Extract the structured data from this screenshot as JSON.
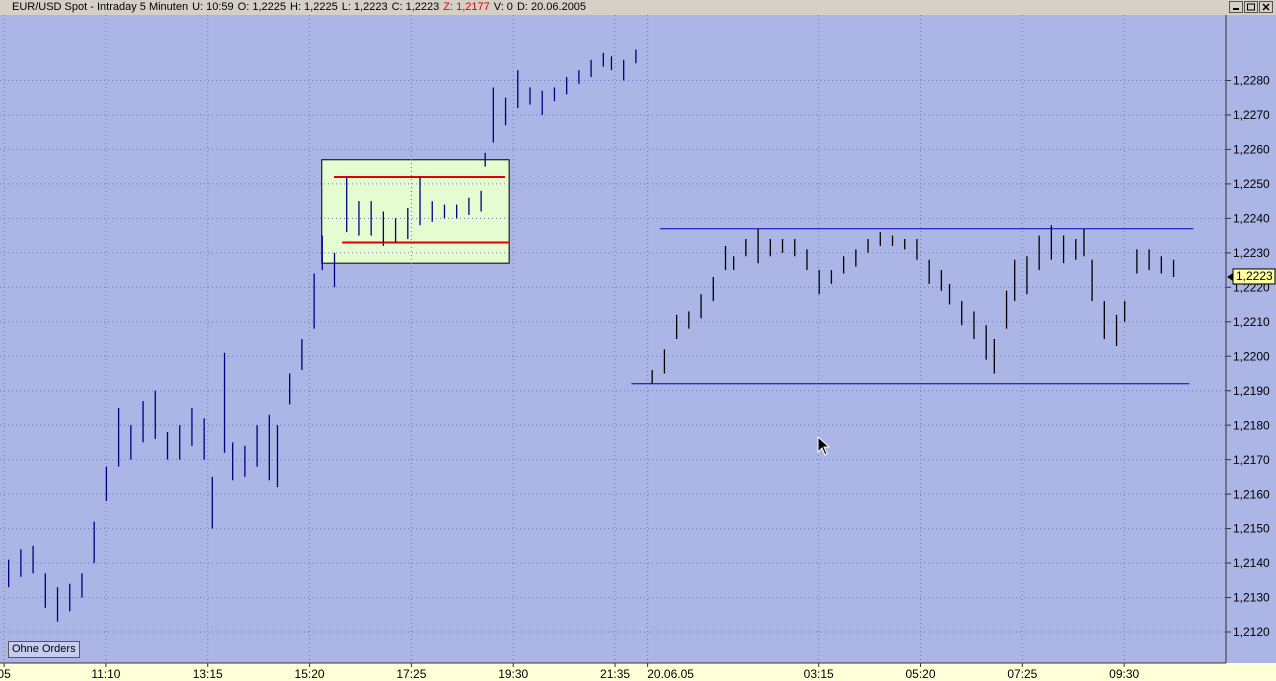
{
  "header": {
    "items": [
      "EUR/USD Spot - Intraday 5 Minuten",
      "U: 10:59",
      "O: 1,2225",
      "H: 1,2225",
      "L: 1,2223",
      "C: 1,2223",
      "Z: 1,2177",
      "V: 0",
      "D: 20.06.2005"
    ]
  },
  "button": "Ohne Orders",
  "chart_data": {
    "type": "ohlc",
    "grid": true,
    "xlim": [
      0,
      301
    ],
    "ylim": [
      1.2111,
      1.2299
    ],
    "xticks": [
      {
        "value": 1,
        "label": "05"
      },
      {
        "value": 26,
        "label": "11:10"
      },
      {
        "value": 51,
        "label": "13:15"
      },
      {
        "value": 76,
        "label": "15:20"
      },
      {
        "value": 101,
        "label": "17:25"
      },
      {
        "value": 126,
        "label": "19:30"
      },
      {
        "value": 151,
        "label": "21:35"
      },
      {
        "value": 159,
        "label": "20.06.05"
      },
      {
        "value": 201,
        "label": "03:15"
      },
      {
        "value": 226,
        "label": "05:20"
      },
      {
        "value": 251,
        "label": "07:25"
      },
      {
        "value": 276,
        "label": "09:30"
      }
    ],
    "yticks": [
      {
        "value": 1.228,
        "label": "1,2280"
      },
      {
        "value": 1.227,
        "label": "1,2270"
      },
      {
        "value": 1.226,
        "label": "1,2260"
      },
      {
        "value": 1.225,
        "label": "1,2250"
      },
      {
        "value": 1.224,
        "label": "1,2240"
      },
      {
        "value": 1.223,
        "label": "1,2230"
      },
      {
        "value": 1.222,
        "label": "1,2220"
      },
      {
        "value": 1.221,
        "label": "1,2210"
      },
      {
        "value": 1.22,
        "label": "1,2200"
      },
      {
        "value": 1.219,
        "label": "1,2190"
      },
      {
        "value": 1.218,
        "label": "1,2180"
      },
      {
        "value": 1.217,
        "label": "1,2170"
      },
      {
        "value": 1.216,
        "label": "1,2160"
      },
      {
        "value": 1.215,
        "label": "1,2150"
      },
      {
        "value": 1.214,
        "label": "1,2140"
      },
      {
        "value": 1.213,
        "label": "1,2130"
      },
      {
        "value": 1.212,
        "label": "1,2120"
      }
    ],
    "box": {
      "x": [
        79,
        125
      ],
      "y": [
        1.2257,
        1.2227
      ],
      "color": "#e4fcd0"
    },
    "hlines": [
      {
        "value": 1.2237,
        "x": [
          162,
          293
        ],
        "color": "#0000c0"
      },
      {
        "value": 1.2192,
        "x": [
          155,
          292
        ],
        "color": "#0000c0"
      },
      {
        "value": 1.2252,
        "x": [
          82,
          124
        ],
        "color": "#e00000"
      },
      {
        "value": 1.2233,
        "x": [
          84,
          125
        ],
        "color": "#e00000"
      }
    ],
    "series": [
      {
        "color": "#000080",
        "x": [
          2,
          5,
          8,
          11,
          14,
          17,
          20,
          23,
          26,
          29,
          32,
          35,
          38,
          41,
          44,
          47,
          50,
          52,
          55,
          57,
          60,
          63,
          66,
          68,
          71,
          74,
          77,
          79,
          82,
          85,
          88,
          91,
          94,
          97,
          100,
          103,
          106,
          109,
          112,
          115,
          118,
          119,
          121,
          124,
          127,
          130,
          133,
          136,
          139,
          142,
          145,
          148,
          150,
          153,
          156
        ],
        "high": [
          1.2141,
          1.2144,
          1.2145,
          1.2137,
          1.2133,
          1.2134,
          1.2137,
          1.2152,
          1.2168,
          1.2185,
          1.218,
          1.2187,
          1.219,
          1.2178,
          1.218,
          1.2185,
          1.2182,
          1.2165,
          1.2201,
          1.2175,
          1.2174,
          1.218,
          1.2183,
          1.218,
          1.2195,
          1.2205,
          1.2224,
          1.2235,
          1.223,
          1.2252,
          1.2245,
          1.2245,
          1.2242,
          1.224,
          1.2243,
          1.2252,
          1.2245,
          1.2244,
          1.2244,
          1.2246,
          1.2248,
          1.2259,
          1.2278,
          1.2275,
          1.2283,
          1.2278,
          1.2277,
          1.2278,
          1.2281,
          1.2283,
          1.2286,
          1.2288,
          1.2287,
          1.2286,
          1.2289
        ],
        "low": [
          1.2133,
          1.2136,
          1.2137,
          1.2127,
          1.2123,
          1.2126,
          1.213,
          1.214,
          1.2158,
          1.2168,
          1.217,
          1.2175,
          1.2176,
          1.217,
          1.217,
          1.2174,
          1.217,
          1.215,
          1.2172,
          1.2164,
          1.2165,
          1.2168,
          1.2164,
          1.2162,
          1.2186,
          1.2196,
          1.2208,
          1.2225,
          1.222,
          1.2236,
          1.2235,
          1.2235,
          1.2232,
          1.2233,
          1.2234,
          1.2238,
          1.2239,
          1.224,
          1.224,
          1.2241,
          1.2242,
          1.2255,
          1.2262,
          1.2267,
          1.2272,
          1.2273,
          1.227,
          1.2274,
          1.2276,
          1.2279,
          1.2281,
          1.2284,
          1.2283,
          1.228,
          1.2285
        ]
      },
      {
        "color": "#000000",
        "x": [
          160,
          163,
          166,
          169,
          172,
          175,
          178,
          180,
          183,
          186,
          189,
          192,
          195,
          198,
          201,
          204,
          207,
          210,
          213,
          216,
          219,
          222,
          225,
          228,
          231,
          233,
          236,
          239,
          242,
          244,
          247,
          249,
          252,
          255,
          258,
          261,
          264,
          266,
          268,
          271,
          274,
          276,
          279,
          282,
          285,
          288
        ],
        "high": [
          1.2196,
          1.2202,
          1.2212,
          1.2213,
          1.2218,
          1.2223,
          1.2232,
          1.2229,
          1.2234,
          1.2237,
          1.2234,
          1.2234,
          1.2234,
          1.2231,
          1.2225,
          1.2225,
          1.2229,
          1.2231,
          1.2234,
          1.2236,
          1.2235,
          1.2234,
          1.2234,
          1.2228,
          1.2225,
          1.2221,
          1.2216,
          1.2213,
          1.2209,
          1.2205,
          1.2219,
          1.2228,
          1.2229,
          1.2235,
          1.2238,
          1.2235,
          1.2234,
          1.2237,
          1.2228,
          1.2216,
          1.2212,
          1.2216,
          1.2231,
          1.2231,
          1.2229,
          1.2228
        ],
        "low": [
          1.2192,
          1.2195,
          1.2205,
          1.2208,
          1.2211,
          1.2216,
          1.2225,
          1.2225,
          1.2229,
          1.2227,
          1.2229,
          1.223,
          1.2229,
          1.2225,
          1.2218,
          1.2221,
          1.2224,
          1.2226,
          1.223,
          1.2232,
          1.2232,
          1.2231,
          1.2228,
          1.2221,
          1.2219,
          1.2215,
          1.2209,
          1.2205,
          1.2199,
          1.2195,
          1.2208,
          1.2216,
          1.2218,
          1.2225,
          1.2228,
          1.2227,
          1.2228,
          1.2229,
          1.2216,
          1.2205,
          1.2203,
          1.221,
          1.2224,
          1.2225,
          1.2224,
          1.2223
        ]
      }
    ],
    "last_price": {
      "value": 1.2223,
      "label": "1,2223"
    }
  }
}
